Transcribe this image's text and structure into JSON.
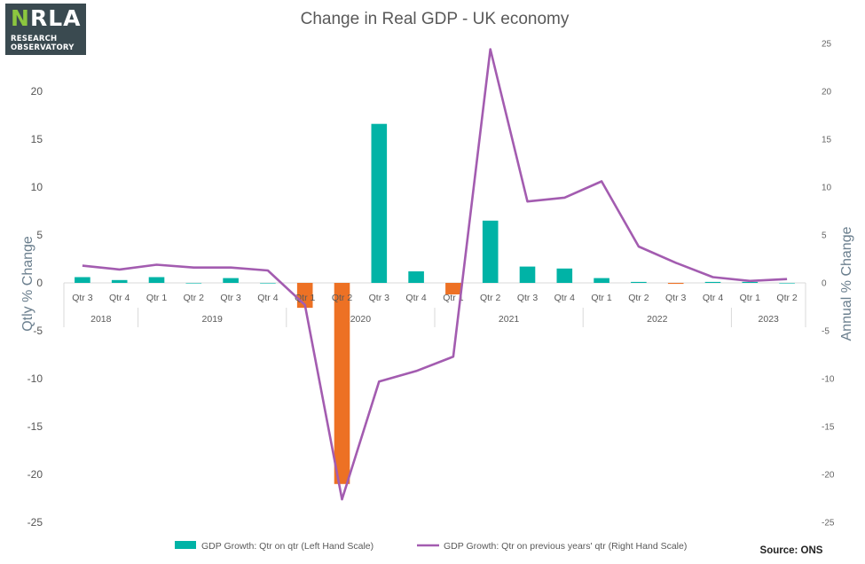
{
  "logo": {
    "name_part1": "N",
    "name_part2": "RLA",
    "line1": "RESEARCH",
    "line2": "OBSERVATORY"
  },
  "source_note": "Source: ONS",
  "colors": {
    "pos": "#00b3a6",
    "neg": "#ed7124",
    "line": "#a35cb0",
    "grid": "#d9d9d9"
  },
  "chart_data": {
    "type": "bar+line",
    "title": "Change in Real GDP - UK economy",
    "ylabel": "Qtly % Change",
    "y2label": "Annual % Change",
    "ylim": [
      -25,
      25
    ],
    "y2lim": [
      -25,
      25
    ],
    "yticks": [
      20,
      15,
      10,
      5,
      0,
      -5,
      -10,
      -15,
      -20,
      -25
    ],
    "y2ticks": [
      25,
      20,
      15,
      10,
      5,
      0,
      -5,
      -10,
      -15,
      -20,
      -25
    ],
    "categories": [
      "Qtr 3",
      "Qtr 4",
      "Qtr 1",
      "Qtr 2",
      "Qtr 3",
      "Qtr 4",
      "Qtr 1",
      "Qtr 2",
      "Qtr 3",
      "Qtr 4",
      "Qtr 1",
      "Qtr 2",
      "Qtr 3",
      "Qtr 4",
      "Qtr 1",
      "Qtr 2",
      "Qtr 3",
      "Qtr 4",
      "Qtr 1",
      "Qtr 2"
    ],
    "years": [
      {
        "label": "2018",
        "count": 2
      },
      {
        "label": "2019",
        "count": 4
      },
      {
        "label": "2020",
        "count": 4
      },
      {
        "label": "2021",
        "count": 4
      },
      {
        "label": "2022",
        "count": 4
      },
      {
        "label": "2023",
        "count": 2
      }
    ],
    "series": [
      {
        "name": "GDP Growth: Qtr on qtr (Left Hand Scale)",
        "kind": "bar",
        "axis": "left",
        "values": [
          0.6,
          0.3,
          0.6,
          0.0,
          0.5,
          0.0,
          -2.6,
          -21.0,
          16.6,
          1.2,
          -1.2,
          6.5,
          1.7,
          1.5,
          0.5,
          0.1,
          -0.1,
          0.1,
          0.1,
          0.0
        ]
      },
      {
        "name": "GDP Growth: Qtr on previous years' qtr (Right Hand Scale)",
        "kind": "line",
        "axis": "right",
        "values": [
          1.8,
          1.4,
          1.9,
          1.6,
          1.6,
          1.3,
          -2.3,
          -22.6,
          -10.3,
          -9.2,
          -7.7,
          24.4,
          8.5,
          8.9,
          10.6,
          3.8,
          2.1,
          0.6,
          0.2,
          0.4
        ]
      }
    ]
  }
}
